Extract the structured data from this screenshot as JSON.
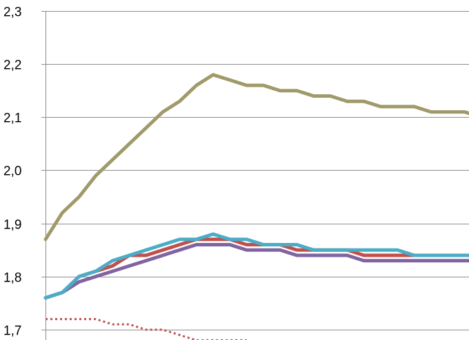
{
  "chart_data": {
    "type": "line",
    "title": "",
    "xlabel": "",
    "ylabel": "",
    "ylim": [
      1.7,
      2.3
    ],
    "yticks": [
      {
        "value": 2.3,
        "label": "2,3"
      },
      {
        "value": 2.2,
        "label": "2,2"
      },
      {
        "value": 2.1,
        "label": "2,1"
      },
      {
        "value": 2.0,
        "label": "2,0"
      },
      {
        "value": 1.9,
        "label": "1,9"
      },
      {
        "value": 1.8,
        "label": "1,8"
      },
      {
        "value": 1.7,
        "label": "1,7"
      }
    ],
    "grid": true,
    "legend": "none",
    "x_count": 28,
    "series": [
      {
        "color": "#A09A6A",
        "style": "solid",
        "values": [
          1.87,
          1.92,
          1.95,
          1.99,
          2.02,
          2.05,
          2.08,
          2.11,
          2.13,
          2.16,
          2.18,
          2.17,
          2.16,
          2.16,
          2.15,
          2.15,
          2.14,
          2.14,
          2.13,
          2.13,
          2.12,
          2.12,
          2.12,
          2.11,
          2.11,
          2.11,
          2.1,
          2.1
        ]
      },
      {
        "color": "#C0504D",
        "style": "solid",
        "values": [
          1.76,
          1.77,
          1.8,
          1.81,
          1.82,
          1.84,
          1.84,
          1.85,
          1.86,
          1.87,
          1.87,
          1.87,
          1.86,
          1.86,
          1.86,
          1.85,
          1.85,
          1.85,
          1.85,
          1.84,
          1.84,
          1.84,
          1.84,
          1.84,
          1.84,
          1.84,
          1.84,
          1.84
        ]
      },
      {
        "color": "#8064A2",
        "style": "solid",
        "values": [
          1.76,
          1.77,
          1.79,
          1.8,
          1.81,
          1.82,
          1.83,
          1.84,
          1.85,
          1.86,
          1.86,
          1.86,
          1.85,
          1.85,
          1.85,
          1.84,
          1.84,
          1.84,
          1.84,
          1.83,
          1.83,
          1.83,
          1.83,
          1.83,
          1.83,
          1.83,
          1.83,
          1.83
        ]
      },
      {
        "color": "#4BACC6",
        "style": "solid",
        "values": [
          1.76,
          1.77,
          1.8,
          1.81,
          1.83,
          1.84,
          1.85,
          1.86,
          1.87,
          1.87,
          1.88,
          1.87,
          1.87,
          1.86,
          1.86,
          1.86,
          1.85,
          1.85,
          1.85,
          1.85,
          1.85,
          1.85,
          1.84,
          1.84,
          1.84,
          1.84,
          1.84,
          1.84
        ]
      },
      {
        "color": "#C0504D",
        "style": "dotted",
        "values": [
          1.72,
          1.72,
          1.72,
          1.72,
          1.71,
          1.71,
          1.7,
          1.7,
          1.69,
          1.68,
          1.68,
          1.68,
          1.68
        ]
      }
    ]
  }
}
